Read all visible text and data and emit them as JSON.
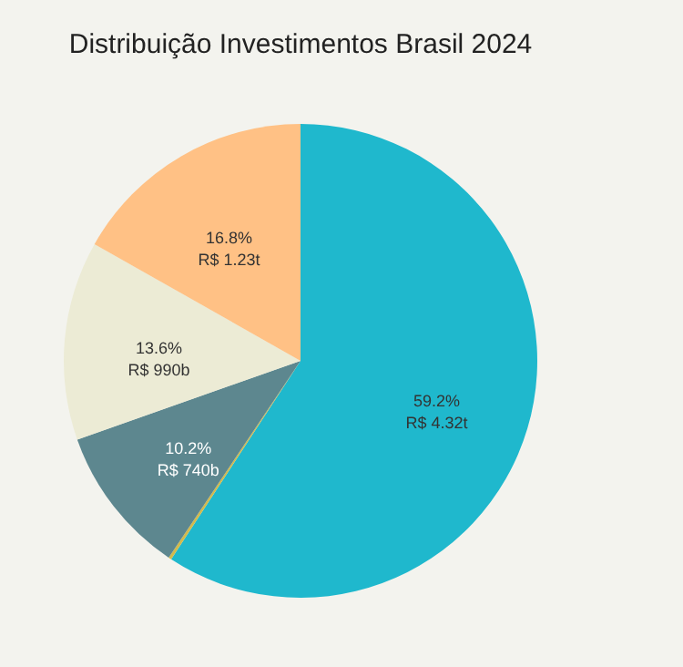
{
  "chart_data": {
    "type": "pie",
    "title": "Distribuição Investimentos Brasil 2024",
    "categories": [
      null,
      null,
      null,
      null,
      null
    ],
    "values": [
      59.2,
      0.2,
      10.2,
      13.6,
      16.8
    ],
    "colors": [
      "#1fb8cd",
      "#d2ba4c",
      "#5d878f",
      "#ecebd5",
      "#ffc185"
    ],
    "value_labels": [
      "59.2%\nR$ 4.32t",
      null,
      "10.2%\nR$ 740b",
      "13.6%\nR$ 990b",
      "16.8%\nR$ 1.23t"
    ],
    "legend": false
  }
}
